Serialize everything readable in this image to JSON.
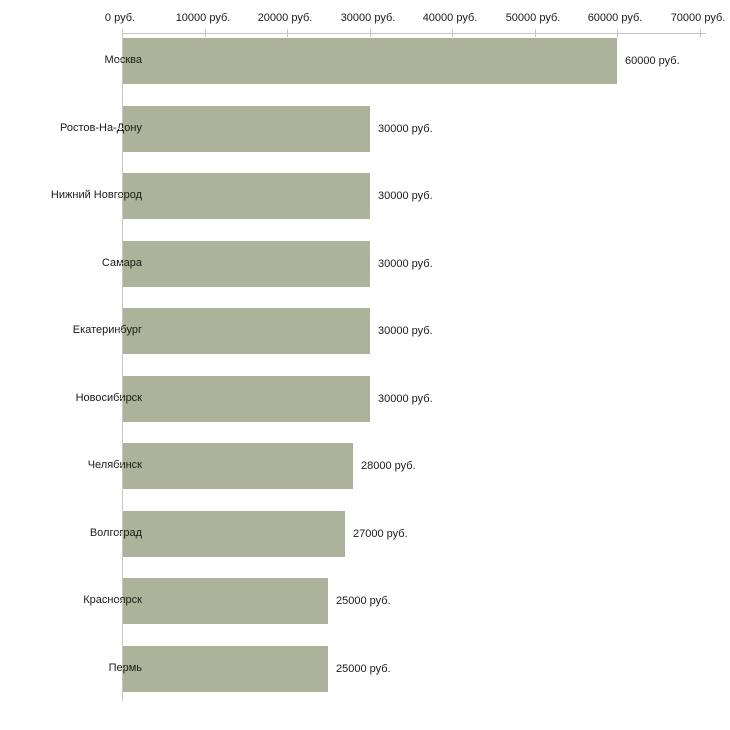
{
  "chart_data": {
    "type": "bar",
    "orientation": "horizontal",
    "title": "",
    "xlabel": "",
    "ylabel": "",
    "unit_suffix": " руб.",
    "xlim": [
      0,
      70000
    ],
    "x_axis_position": "top",
    "grid": false,
    "legend": false,
    "x_ticks": [
      0,
      10000,
      20000,
      30000,
      40000,
      50000,
      60000,
      70000
    ],
    "x_tick_labels": [
      "0 руб.",
      "10000 руб.",
      "20000 руб.",
      "30000 руб.",
      "40000 руб.",
      "50000 руб.",
      "60000 руб.",
      "70000 руб."
    ],
    "categories": [
      "Москва",
      "Ростов-На-Дону",
      "Нижний Новгород",
      "Самара",
      "Екатеринбург",
      "Новосибирск",
      "Челябинск",
      "Волгоград",
      "Красноярск",
      "Пермь"
    ],
    "values": [
      60000,
      30000,
      30000,
      30000,
      30000,
      30000,
      28000,
      27000,
      25000,
      25000
    ],
    "value_labels": [
      "60000 руб.",
      "30000 руб.",
      "30000 руб.",
      "30000 руб.",
      "30000 руб.",
      "30000 руб.",
      "28000 руб.",
      "27000 руб.",
      "25000 руб.",
      "25000 руб."
    ],
    "colors": {
      "bar": "#adb39a",
      "axis": "#c6c6c6",
      "tick": "#ccca9e",
      "text": "#1a1a1a",
      "background": "#ffffff"
    }
  }
}
